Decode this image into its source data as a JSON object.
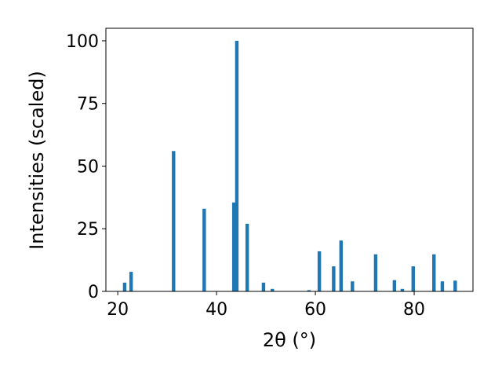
{
  "chart_data": {
    "type": "bar",
    "xlabel": "2θ (°)",
    "ylabel": "Intensities (scaled)",
    "x": [
      21.4,
      22.7,
      31.3,
      37.5,
      43.5,
      44.1,
      46.2,
      49.5,
      51.3,
      58.7,
      60.8,
      63.7,
      65.2,
      67.5,
      72.2,
      76.0,
      77.6,
      79.8,
      84.0,
      85.7,
      88.3
    ],
    "values": [
      3.5,
      7.8,
      56,
      33,
      35.5,
      100,
      27,
      3.5,
      1,
      0.5,
      16,
      10,
      20.3,
      4,
      14.8,
      4.5,
      1,
      10,
      14.8,
      4,
      4.3
    ],
    "color": "#1f77b4",
    "xlim": [
      17.6,
      91.9
    ],
    "xticks": [
      20,
      40,
      60,
      80
    ],
    "ylim": [
      0,
      105
    ],
    "yticks": [
      0,
      25,
      50,
      75,
      100
    ]
  }
}
